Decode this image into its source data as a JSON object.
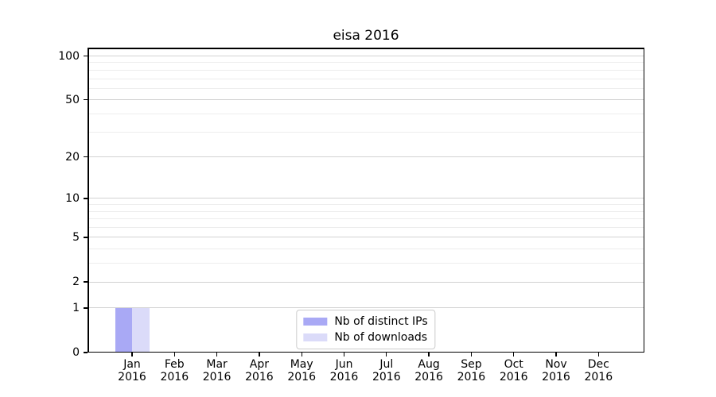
{
  "chart_data": {
    "type": "bar",
    "title": "eisa 2016",
    "categories": [
      "Jan\n2016",
      "Feb\n2016",
      "Mar\n2016",
      "Apr\n2016",
      "May\n2016",
      "Jun\n2016",
      "Jul\n2016",
      "Aug\n2016",
      "Sep\n2016",
      "Oct\n2016",
      "Nov\n2016",
      "Dec\n2016"
    ],
    "series": [
      {
        "name": "Nb of distinct IPs",
        "color": "#a9a9f5",
        "values": [
          1,
          0,
          0,
          0,
          0,
          0,
          0,
          0,
          0,
          0,
          0,
          0
        ]
      },
      {
        "name": "Nb of downloads",
        "color": "#dbdbf9",
        "values": [
          1,
          0,
          0,
          0,
          0,
          0,
          0,
          0,
          0,
          0,
          0,
          0
        ]
      }
    ],
    "xlabel": "",
    "ylabel": "",
    "yscale": "log1p",
    "ylim": [
      0,
      114
    ],
    "yticks": [
      0,
      1,
      2,
      5,
      10,
      20,
      50,
      100
    ],
    "yticks_minor": [
      3,
      4,
      6,
      7,
      8,
      9,
      30,
      40,
      60,
      70,
      80,
      90
    ],
    "grid": "horizontal",
    "legend": {
      "position": "lower center"
    }
  },
  "colors": {
    "major_grid": "#d2d2d2",
    "minor_grid": "#ededed",
    "spine": "#000000",
    "legend_border": "#cccccc",
    "background": "#ffffff"
  }
}
